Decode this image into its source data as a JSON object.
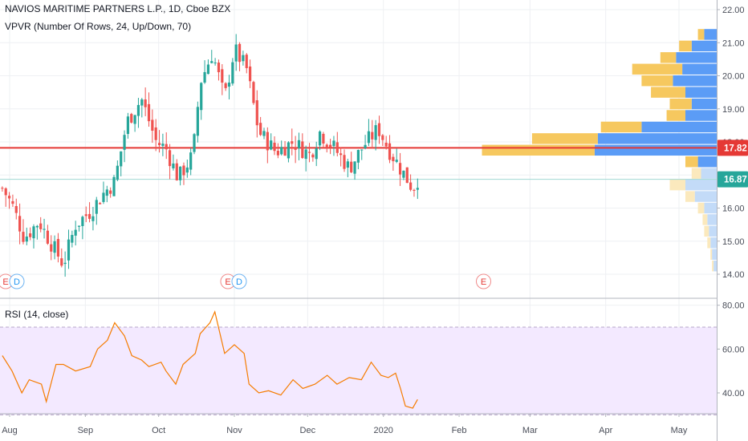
{
  "header": {
    "symbol_title": "NAVIOS MARITIME PARTNERS L.P., 1D, Cboe BZX",
    "vpvr_label": "VPVR (Number Of Rows, 24, Up/Down, 70)",
    "rsi_label": "RSI (14, close)"
  },
  "colors": {
    "up": "#26a69a",
    "down": "#ef5350",
    "vp_up": "#5b9cf6",
    "vp_down": "#f6c85f",
    "vp_up_faint": "#c3dbf8",
    "vp_down_faint": "#fbe9bd",
    "price_line": "#e53935",
    "last_line": "#9fd8d3",
    "rsi_line": "#f57c00",
    "rsi_band": "#f3e9ff"
  },
  "price_badges": {
    "red": "17.82",
    "green": "16.87"
  },
  "events": [
    {
      "date": "2019-08-01",
      "labels": [
        "E",
        "D"
      ]
    },
    {
      "date": "2019-10-31",
      "labels": [
        "E",
        "D"
      ]
    },
    {
      "date": "2020-02-11",
      "labels": [
        "E"
      ]
    }
  ],
  "chart_data": [
    {
      "type": "candlestick",
      "y_axis": {
        "ticks": [
          "14.00",
          "15.00",
          "16.00",
          "17.00",
          "18.00",
          "19.00",
          "20.00",
          "21.00",
          "22.00"
        ],
        "ylim": [
          13.5,
          22.2
        ]
      },
      "x_axis": {
        "labels": [
          "Aug",
          "Sep",
          "Oct",
          "Nov",
          "Dec",
          "2020",
          "Feb",
          "Mar",
          "Apr",
          "May"
        ]
      },
      "horizontal_lines": [
        17.82,
        16.87
      ],
      "close_path": [
        [
          "2019-07-29",
          16.6
        ],
        [
          "2019-08-02",
          16.1
        ],
        [
          "2019-08-07",
          15.1
        ],
        [
          "2019-08-13",
          15.6
        ],
        [
          "2019-08-19",
          14.8
        ],
        [
          "2019-08-23",
          14.3
        ],
        [
          "2019-08-28",
          15.5
        ],
        [
          "2019-09-03",
          15.9
        ],
        [
          "2019-09-09",
          16.5
        ],
        [
          "2019-09-13",
          16.8
        ],
        [
          "2019-09-18",
          18.6
        ],
        [
          "2019-09-24",
          19.3
        ],
        [
          "2019-09-30",
          18.0
        ],
        [
          "2019-10-04",
          17.8
        ],
        [
          "2019-10-09",
          16.9
        ],
        [
          "2019-10-15",
          17.6
        ],
        [
          "2019-10-18",
          19.8
        ],
        [
          "2019-10-23",
          20.7
        ],
        [
          "2019-10-28",
          19.3
        ],
        [
          "2019-11-01",
          20.8
        ],
        [
          "2019-11-06",
          20.2
        ],
        [
          "2019-11-11",
          18.3
        ],
        [
          "2019-11-18",
          17.7
        ],
        [
          "2019-11-25",
          18.0
        ],
        [
          "2019-12-02",
          17.6
        ],
        [
          "2019-12-06",
          18.3
        ],
        [
          "2019-12-12",
          17.8
        ],
        [
          "2019-12-18",
          17.2
        ],
        [
          "2019-12-24",
          17.9
        ],
        [
          "2019-12-30",
          18.4
        ],
        [
          "2020-01-03",
          17.8
        ],
        [
          "2020-01-08",
          17.2
        ],
        [
          "2020-01-13",
          16.6
        ],
        [
          "2020-01-15",
          16.87
        ]
      ]
    },
    {
      "type": "bar",
      "name": "VPVR",
      "orientation": "horizontal",
      "price_rows": [
        21.25,
        20.9,
        20.55,
        20.2,
        19.85,
        19.5,
        19.15,
        18.8,
        18.45,
        18.1,
        17.75,
        17.4,
        17.05,
        16.7,
        16.35,
        16.0,
        15.65,
        15.3,
        14.95,
        14.6,
        14.25
      ],
      "up_volume": [
        8,
        16,
        26,
        22,
        28,
        20,
        16,
        20,
        48,
        76,
        78,
        12,
        10,
        20,
        14,
        8,
        6,
        5,
        4,
        3,
        2
      ],
      "down_volume": [
        4,
        8,
        10,
        32,
        20,
        22,
        14,
        12,
        26,
        42,
        72,
        8,
        6,
        10,
        6,
        4,
        3,
        3,
        2,
        1,
        1
      ]
    },
    {
      "type": "line",
      "name": "RSI (14, close)",
      "y_axis": {
        "ticks": [
          "40.00",
          "60.00",
          "80.00"
        ],
        "ylim": [
          25,
          82
        ]
      },
      "bands": [
        30,
        70
      ],
      "points": [
        [
          "2019-07-29",
          57
        ],
        [
          "2019-08-02",
          50
        ],
        [
          "2019-08-06",
          40
        ],
        [
          "2019-08-09",
          46
        ],
        [
          "2019-08-14",
          44
        ],
        [
          "2019-08-16",
          36
        ],
        [
          "2019-08-20",
          53
        ],
        [
          "2019-08-23",
          53
        ],
        [
          "2019-08-28",
          50
        ],
        [
          "2019-09-03",
          52
        ],
        [
          "2019-09-06",
          60
        ],
        [
          "2019-09-10",
          64
        ],
        [
          "2019-09-13",
          72
        ],
        [
          "2019-09-17",
          66
        ],
        [
          "2019-09-20",
          57
        ],
        [
          "2019-09-24",
          55
        ],
        [
          "2019-09-27",
          52
        ],
        [
          "2019-10-02",
          54
        ],
        [
          "2019-10-04",
          50
        ],
        [
          "2019-10-08",
          44
        ],
        [
          "2019-10-11",
          53
        ],
        [
          "2019-10-16",
          58
        ],
        [
          "2019-10-18",
          67
        ],
        [
          "2019-10-22",
          72
        ],
        [
          "2019-10-24",
          77
        ],
        [
          "2019-10-28",
          58
        ],
        [
          "2019-11-01",
          62
        ],
        [
          "2019-11-05",
          58
        ],
        [
          "2019-11-07",
          44
        ],
        [
          "2019-11-11",
          40
        ],
        [
          "2019-11-15",
          41
        ],
        [
          "2019-11-20",
          39
        ],
        [
          "2019-11-25",
          46
        ],
        [
          "2019-11-29",
          42
        ],
        [
          "2019-12-04",
          44
        ],
        [
          "2019-12-09",
          48
        ],
        [
          "2019-12-13",
          44
        ],
        [
          "2019-12-18",
          47
        ],
        [
          "2019-12-23",
          46
        ],
        [
          "2019-12-27",
          54
        ],
        [
          "2019-12-31",
          48
        ],
        [
          "2020-01-03",
          47
        ],
        [
          "2020-01-06",
          49
        ],
        [
          "2020-01-08",
          42
        ],
        [
          "2020-01-10",
          34
        ],
        [
          "2020-01-13",
          33
        ],
        [
          "2020-01-15",
          37
        ]
      ]
    }
  ]
}
